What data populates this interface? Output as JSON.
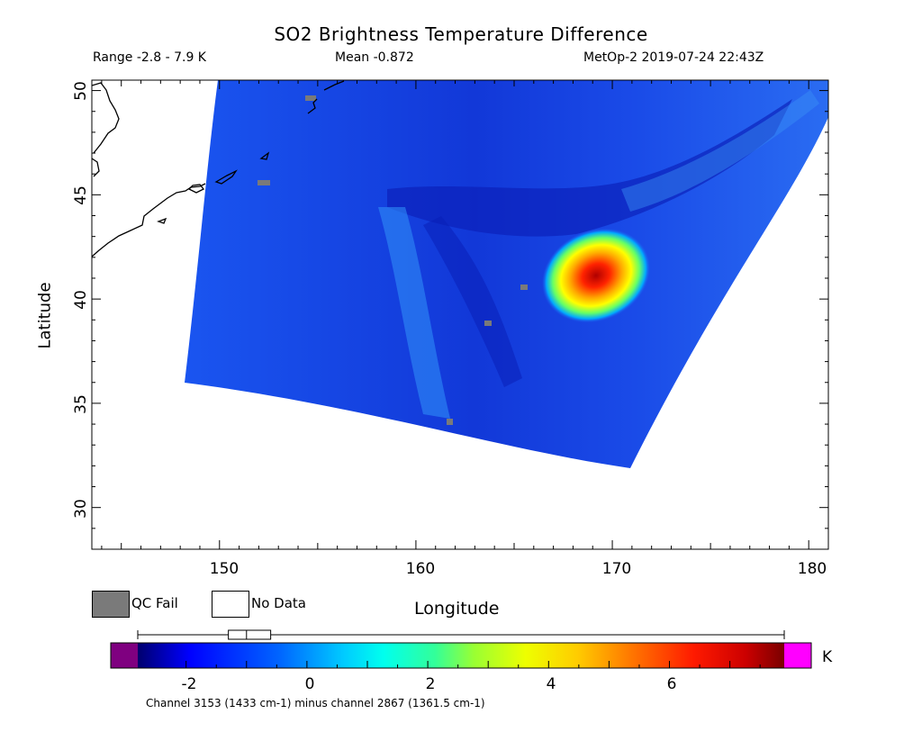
{
  "header": {
    "title": "SO2 Brightness Temperature Difference",
    "range": "Range -2.8 - 7.9 K",
    "mean": "Mean -0.872",
    "satellite_time": "MetOp-2 2019-07-24 22:43Z"
  },
  "axes": {
    "x_label": "Longitude",
    "y_label": "Latitude",
    "x_ticks": [
      "150",
      "160",
      "170",
      "180"
    ],
    "y_ticks": [
      "50",
      "45",
      "40",
      "35",
      "30"
    ],
    "x_range": [
      143.5,
      181
    ],
    "y_range": [
      28,
      50.5
    ]
  },
  "legend": {
    "qc_fail": "QC Fail",
    "no_data": "No Data",
    "qc_color": "#7a7a7a"
  },
  "colorbar": {
    "unit": "K",
    "ticks": [
      "-2",
      "0",
      "2",
      "4",
      "6"
    ],
    "tick_values": [
      -2,
      0,
      2,
      4,
      6
    ],
    "range": [
      -2.8,
      7.9
    ],
    "under_color": "#7f0080",
    "over_color": "#ff00ff",
    "boxplot": {
      "min": -2.8,
      "q1": -1.3,
      "median": -1.0,
      "q3": -0.6,
      "max": 7.9
    }
  },
  "footer": "Channel 3153 (1433 cm-1) minus channel 2867 (1361.5 cm-1)",
  "map_data": {
    "swath_background": "#1f5cf0",
    "plume": {
      "center_lon": 169.0,
      "center_lat": 41.5,
      "peak_value": 7.9
    }
  }
}
